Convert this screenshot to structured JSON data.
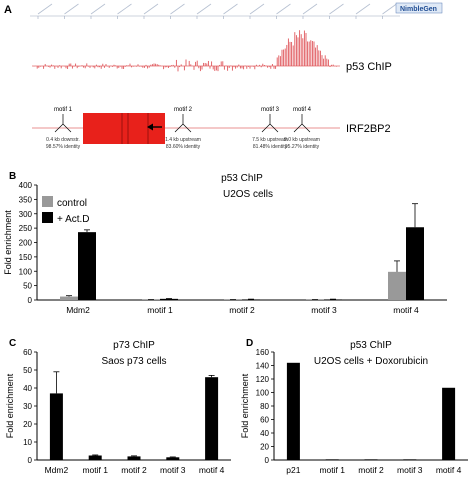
{
  "panel_a": {
    "letter": "A",
    "logo_text": "NimbleGen",
    "track1_label": "p53 ChIP",
    "track2_label": "IRF2BP2",
    "motifs": [
      {
        "name": "motif 1",
        "dist": "0.4 kb downstr.",
        "ident": "98.57% identity"
      },
      {
        "name": "motif 2",
        "dist": "1.4 kb upstream",
        "ident": "83.60% identity"
      },
      {
        "name": "motif 3",
        "dist": "7.5 kb upstream",
        "ident": "81.48% identity"
      },
      {
        "name": "motif 4",
        "dist": "9.0 kb upstream",
        "ident": "95.27% identity"
      }
    ]
  },
  "chart_data": [
    {
      "panel": "B",
      "type": "bar",
      "title": "p53 ChIP",
      "subtitle": "U2OS cells",
      "ylabel": "Fold enrichment",
      "ylim": [
        0,
        400
      ],
      "yticks": [
        0,
        50,
        100,
        150,
        200,
        250,
        300,
        350,
        400
      ],
      "categories": [
        "Mdm2",
        "motif 1",
        "motif 2",
        "motif 3",
        "motif 4"
      ],
      "legend_placement": "top-left",
      "series": [
        {
          "name": "control",
          "color": "#999999",
          "values": [
            12,
            1,
            1,
            1,
            98
          ],
          "errors": [
            3,
            0.5,
            0.5,
            0.5,
            38
          ]
        },
        {
          "name": "+ Act.D",
          "color": "#000000",
          "values": [
            236,
            4,
            2,
            2,
            253
          ],
          "errors": [
            8,
            1,
            1,
            1,
            82
          ]
        }
      ]
    },
    {
      "panel": "C",
      "type": "bar",
      "title": "p73 ChIP",
      "subtitle": "Saos p73 cells",
      "ylabel": "Fold enrichment",
      "ylim": [
        0,
        60
      ],
      "yticks": [
        0,
        10,
        20,
        30,
        40,
        50,
        60
      ],
      "categories": [
        "Mdm2",
        "motif 1",
        "motif 2",
        "motif 3",
        "motif 4"
      ],
      "series": [
        {
          "color": "#000000",
          "values": [
            37,
            2.5,
            2,
            1.5,
            46
          ],
          "errors": [
            12,
            0.3,
            0.3,
            0.2,
            1
          ]
        }
      ]
    },
    {
      "panel": "D",
      "type": "bar",
      "title": "p53 ChIP",
      "subtitle": "U2OS cells + Doxorubicin",
      "ylabel": "Fold enrichment",
      "ylim": [
        0,
        160
      ],
      "yticks": [
        0,
        20,
        40,
        60,
        80,
        100,
        120,
        140,
        160
      ],
      "categories": [
        "p21",
        "motif 1",
        "motif 2",
        "motif 3",
        "motif 4"
      ],
      "series": [
        {
          "color": "#000000",
          "values": [
            144,
            1,
            1,
            1,
            107
          ],
          "errors": [
            0,
            0,
            0,
            0,
            0
          ]
        }
      ]
    }
  ]
}
